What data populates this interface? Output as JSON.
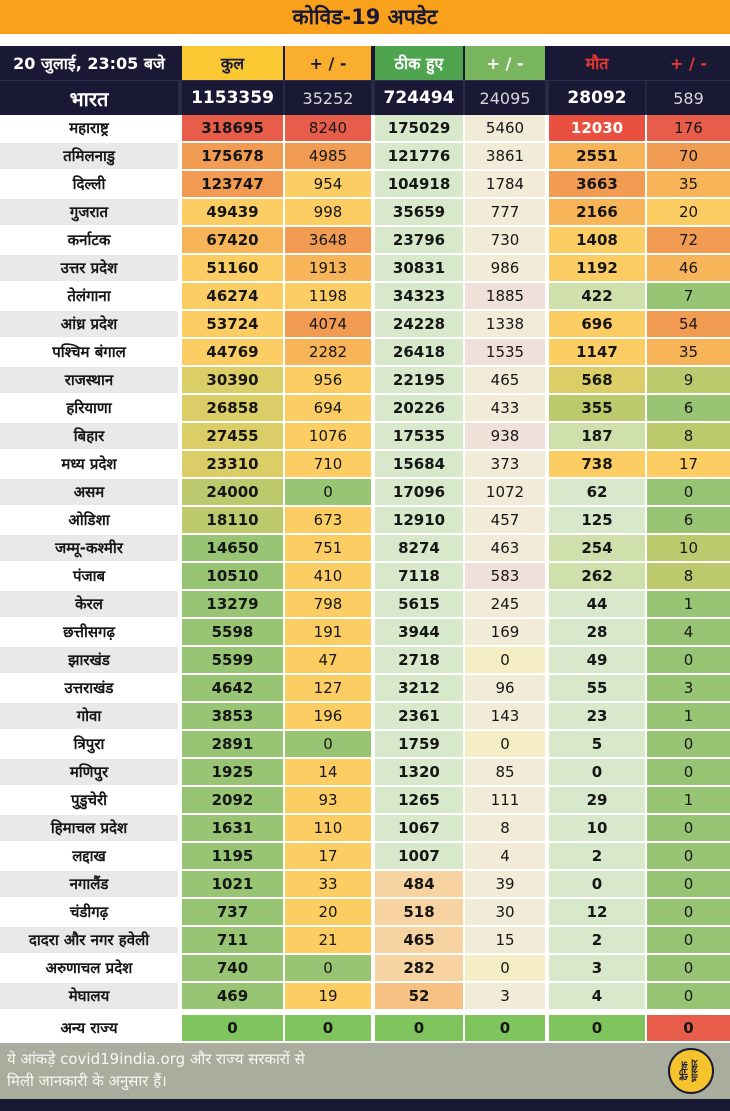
{
  "title": "कोविड-19 अपडेट",
  "header": {
    "datetime": "20 जुलाई, 23:05 बजे",
    "column_styles": [
      {
        "bg": "#f9c832",
        "fg": "#191936"
      },
      {
        "bg": "#f9ae2e",
        "fg": "#191936"
      },
      {
        "bg": "#4fa450",
        "fg": "#ffffff"
      },
      {
        "bg": "#79b55c",
        "fg": "#ffffff"
      },
      {
        "bg": "#191936",
        "fg": "#e8392f"
      },
      {
        "bg": "#191936",
        "fg": "#e8392f"
      }
    ]
  },
  "palette": {
    "R": "#e85d4a",
    "Rw": "#e8503f",
    "O": "#f29b52",
    "YO": "#f8b458",
    "Y": "#fccd63",
    "OL": "#dcce67",
    "GY": "#bcc96c",
    "G": "#97c573",
    "BG": "#7fc45c",
    "PG": "#d8e8cb",
    "LG": "#cfe0ad",
    "PC": "#f2ebd8",
    "PP": "#efe1d9",
    "PY": "#f5eec5",
    "PO": "#f8d3a2",
    "POd": "#f6c183"
  },
  "chart_data": {
    "type": "table",
    "title": "कोविड-19 अपडेट",
    "updated": "20 जुलाई, 23:05 बजे",
    "columns": [
      "कुल",
      "+ / -",
      "ठीक हुए",
      "+ / -",
      "मौत",
      "+ / -"
    ],
    "total_row": {
      "name": "भारत",
      "values": [
        1153359,
        35252,
        724494,
        24095,
        28092,
        589
      ]
    },
    "rows": [
      {
        "name": "महाराष्ट्र",
        "values": [
          318695,
          8240,
          175029,
          5460,
          12030,
          176
        ],
        "colors": [
          "R",
          "R",
          "PG",
          "PC",
          "Rw",
          "R"
        ]
      },
      {
        "name": "तमिलनाडु",
        "values": [
          175678,
          4985,
          121776,
          3861,
          2551,
          70
        ],
        "colors": [
          "O",
          "O",
          "PG",
          "PC",
          "YO",
          "O"
        ]
      },
      {
        "name": "दिल्ली",
        "values": [
          123747,
          954,
          104918,
          1784,
          3663,
          35
        ],
        "colors": [
          "O",
          "Y",
          "PG",
          "PC",
          "O",
          "YO"
        ]
      },
      {
        "name": "गुजरात",
        "values": [
          49439,
          998,
          35659,
          777,
          2166,
          20
        ],
        "colors": [
          "Y",
          "Y",
          "PG",
          "PC",
          "YO",
          "Y"
        ]
      },
      {
        "name": "कर्नाटक",
        "values": [
          67420,
          3648,
          23796,
          730,
          1408,
          72
        ],
        "colors": [
          "YO",
          "O",
          "PG",
          "PC",
          "Y",
          "O"
        ]
      },
      {
        "name": "उत्तर प्रदेश",
        "values": [
          51160,
          1913,
          30831,
          986,
          1192,
          46
        ],
        "colors": [
          "Y",
          "YO",
          "PG",
          "PC",
          "Y",
          "YO"
        ]
      },
      {
        "name": "तेलंगाना",
        "values": [
          46274,
          1198,
          34323,
          1885,
          422,
          7
        ],
        "colors": [
          "Y",
          "Y",
          "PG",
          "PP",
          "LG",
          "G"
        ]
      },
      {
        "name": "आंध्र प्रदेश",
        "values": [
          53724,
          4074,
          24228,
          1338,
          696,
          54
        ],
        "colors": [
          "Y",
          "O",
          "PG",
          "PC",
          "Y",
          "O"
        ]
      },
      {
        "name": "पश्चिम बंगाल",
        "values": [
          44769,
          2282,
          26418,
          1535,
          1147,
          35
        ],
        "colors": [
          "Y",
          "YO",
          "PG",
          "PP",
          "Y",
          "YO"
        ]
      },
      {
        "name": "राजस्थान",
        "values": [
          30390,
          956,
          22195,
          465,
          568,
          9
        ],
        "colors": [
          "OL",
          "Y",
          "PG",
          "PC",
          "OL",
          "GY"
        ]
      },
      {
        "name": "हरियाणा",
        "values": [
          26858,
          694,
          20226,
          433,
          355,
          6
        ],
        "colors": [
          "OL",
          "Y",
          "PG",
          "PC",
          "GY",
          "G"
        ]
      },
      {
        "name": "बिहार",
        "values": [
          27455,
          1076,
          17535,
          938,
          187,
          8
        ],
        "colors": [
          "OL",
          "Y",
          "PG",
          "PP",
          "LG",
          "GY"
        ]
      },
      {
        "name": "मध्य प्रदेश",
        "values": [
          23310,
          710,
          15684,
          373,
          738,
          17
        ],
        "colors": [
          "OL",
          "Y",
          "PG",
          "PC",
          "Y",
          "Y"
        ]
      },
      {
        "name": "असम",
        "values": [
          24000,
          0,
          17096,
          1072,
          62,
          0
        ],
        "colors": [
          "GY",
          "G",
          "PG",
          "PC",
          "PG",
          "G"
        ]
      },
      {
        "name": "ओडिशा",
        "values": [
          18110,
          673,
          12910,
          457,
          125,
          6
        ],
        "colors": [
          "GY",
          "Y",
          "PG",
          "PC",
          "PG",
          "G"
        ]
      },
      {
        "name": "जम्मू-कश्मीर",
        "values": [
          14650,
          751,
          8274,
          463,
          254,
          10
        ],
        "colors": [
          "G",
          "Y",
          "PG",
          "PC",
          "LG",
          "GY"
        ]
      },
      {
        "name": "पंजाब",
        "values": [
          10510,
          410,
          7118,
          583,
          262,
          8
        ],
        "colors": [
          "G",
          "Y",
          "PG",
          "PP",
          "LG",
          "GY"
        ]
      },
      {
        "name": "केरल",
        "values": [
          13279,
          798,
          5615,
          245,
          44,
          1
        ],
        "colors": [
          "G",
          "Y",
          "PG",
          "PC",
          "PG",
          "G"
        ]
      },
      {
        "name": "छत्तीसगढ़",
        "values": [
          5598,
          191,
          3944,
          169,
          28,
          4
        ],
        "colors": [
          "G",
          "Y",
          "PG",
          "PC",
          "PG",
          "G"
        ]
      },
      {
        "name": "झारखंड",
        "values": [
          5599,
          47,
          2718,
          0,
          49,
          0
        ],
        "colors": [
          "G",
          "Y",
          "PG",
          "PY",
          "PG",
          "G"
        ]
      },
      {
        "name": "उत्तराखंड",
        "values": [
          4642,
          127,
          3212,
          96,
          55,
          3
        ],
        "colors": [
          "G",
          "Y",
          "PG",
          "PC",
          "PG",
          "G"
        ]
      },
      {
        "name": "गोवा",
        "values": [
          3853,
          196,
          2361,
          143,
          23,
          1
        ],
        "colors": [
          "G",
          "Y",
          "PG",
          "PC",
          "PG",
          "G"
        ]
      },
      {
        "name": "त्रिपुरा",
        "values": [
          2891,
          0,
          1759,
          0,
          5,
          0
        ],
        "colors": [
          "G",
          "G",
          "PG",
          "PY",
          "PG",
          "G"
        ]
      },
      {
        "name": "मणिपुर",
        "values": [
          1925,
          14,
          1320,
          85,
          0,
          0
        ],
        "colors": [
          "G",
          "Y",
          "PG",
          "PC",
          "PG",
          "G"
        ]
      },
      {
        "name": "पुडुचेरी",
        "values": [
          2092,
          93,
          1265,
          111,
          29,
          1
        ],
        "colors": [
          "G",
          "Y",
          "PG",
          "PC",
          "PG",
          "G"
        ]
      },
      {
        "name": "हिमाचल प्रदेश",
        "values": [
          1631,
          110,
          1067,
          8,
          10,
          0
        ],
        "colors": [
          "G",
          "Y",
          "PG",
          "PC",
          "PG",
          "G"
        ]
      },
      {
        "name": "लद्दाख",
        "values": [
          1195,
          17,
          1007,
          4,
          2,
          0
        ],
        "colors": [
          "G",
          "Y",
          "PG",
          "PC",
          "PG",
          "G"
        ]
      },
      {
        "name": "नगालैंड",
        "values": [
          1021,
          33,
          484,
          39,
          0,
          0
        ],
        "colors": [
          "G",
          "Y",
          "PO",
          "PC",
          "PG",
          "G"
        ]
      },
      {
        "name": "चंडीगढ़",
        "values": [
          737,
          20,
          518,
          30,
          12,
          0
        ],
        "colors": [
          "G",
          "Y",
          "PO",
          "PC",
          "PG",
          "G"
        ]
      },
      {
        "name": "दादरा और नगर हवेली",
        "values": [
          711,
          21,
          465,
          15,
          2,
          0
        ],
        "colors": [
          "G",
          "Y",
          "PO",
          "PC",
          "PG",
          "G"
        ]
      },
      {
        "name": "अरुणाचल प्रदेश",
        "values": [
          740,
          0,
          282,
          0,
          3,
          0
        ],
        "colors": [
          "G",
          "G",
          "PO",
          "PY",
          "PG",
          "G"
        ]
      },
      {
        "name": "मेघालय",
        "values": [
          469,
          19,
          52,
          3,
          4,
          0
        ],
        "colors": [
          "G",
          "Y",
          "POd",
          "PC",
          "PG",
          "G"
        ]
      },
      {
        "name": "अन्य राज्य",
        "values": [
          0,
          0,
          0,
          0,
          0,
          0
        ],
        "colors": [
          "BG",
          "BG",
          "BG",
          "BG",
          "BG",
          "R"
        ],
        "gap_above": true,
        "bold": true
      }
    ]
  },
  "footer": {
    "note_line1": "ये आंकड़े covid19india.org और राज्य सरकारों से",
    "note_line2": "मिली जानकारी के अनुसार हैं।",
    "logo_line1": "दैनिक",
    "logo_line2": "भास्कर"
  }
}
